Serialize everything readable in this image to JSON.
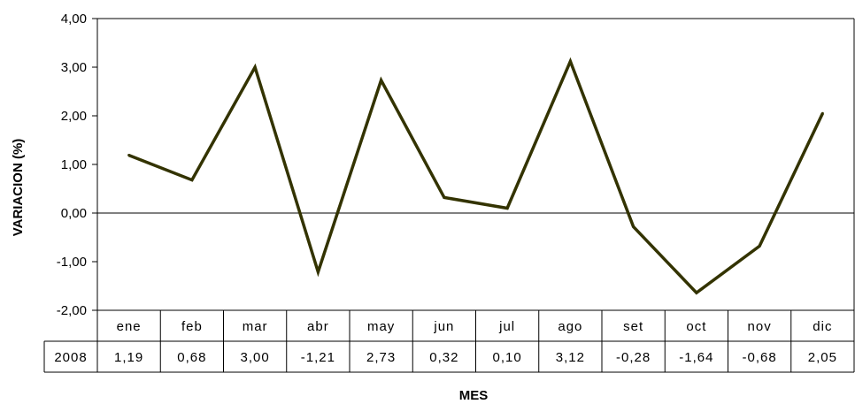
{
  "chart_data": {
    "type": "line",
    "title": "",
    "xlabel": "MES",
    "ylabel": "VARIACION (%)",
    "ylim": [
      -2,
      4
    ],
    "yticks": [
      "4,00",
      "3,00",
      "2,00",
      "1,00",
      "0,00",
      "-1,00",
      "-2,00"
    ],
    "categories": [
      "ene",
      "feb",
      "mar",
      "abr",
      "may",
      "jun",
      "jul",
      "ago",
      "set",
      "oct",
      "nov",
      "dic"
    ],
    "series": [
      {
        "name": "2008",
        "values": [
          1.19,
          0.68,
          3.0,
          -1.21,
          2.73,
          0.32,
          0.1,
          3.12,
          -0.28,
          -1.64,
          -0.68,
          2.05
        ],
        "labels": [
          "1,19",
          "0,68",
          "3,00",
          "-1,21",
          "2,73",
          "0,32",
          "0,10",
          "3,12",
          "-0,28",
          "-1,64",
          "-0,68",
          "2,05"
        ]
      }
    ],
    "line_color": "#333300",
    "grid": false,
    "legend": "data-table-below"
  }
}
